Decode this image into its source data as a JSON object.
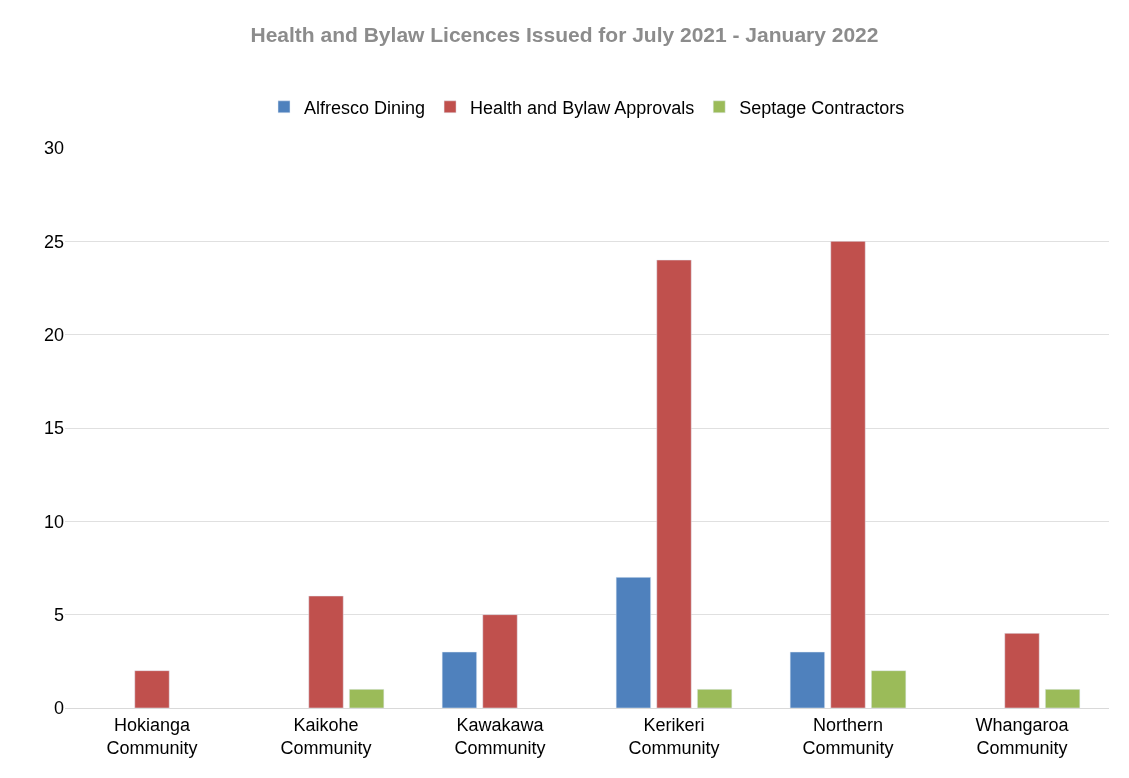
{
  "chart_data": {
    "type": "bar",
    "title": "Health and Bylaw Licences Issued for July 2021 - January 2022",
    "categories": [
      "Hokianga Community",
      "Kaikohe Community",
      "Kawakawa Community",
      "Kerikeri Community",
      "Northern Community",
      "Whangaroa Community"
    ],
    "series": [
      {
        "name": "Alfresco Dining",
        "color": "#4f81bd",
        "values": [
          null,
          null,
          3,
          7,
          3,
          null
        ]
      },
      {
        "name": "Health and Bylaw Approvals",
        "color": "#c0504d",
        "values": [
          2,
          6,
          5,
          24,
          25,
          4
        ]
      },
      {
        "name": "Septage Contractors",
        "color": "#9bbb59",
        "values": [
          null,
          1,
          null,
          1,
          2,
          1
        ]
      }
    ],
    "ylim": [
      0,
      30
    ],
    "yticks": [
      0,
      5,
      10,
      15,
      20,
      25,
      30
    ],
    "grid": "y",
    "legend": "top"
  }
}
